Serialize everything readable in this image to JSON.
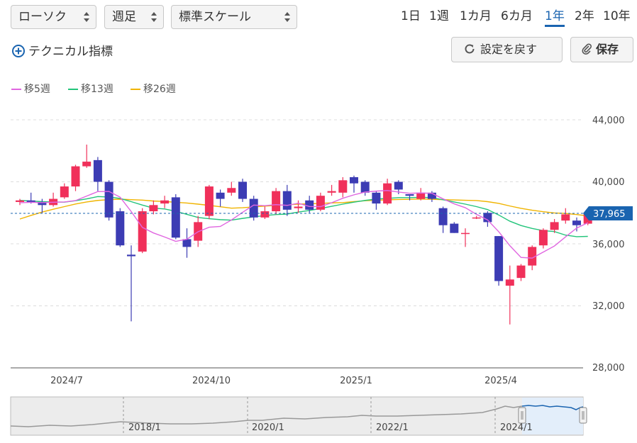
{
  "controls": {
    "chart_type": "ローソク",
    "interval": "週足",
    "scale": "標準スケール",
    "technical": "テクニカル指標",
    "reset": "設定を戻す",
    "save": "保存",
    "periods": [
      "1日",
      "1週",
      "1カ月",
      "6カ月",
      "1年",
      "2年",
      "10年"
    ],
    "active_period": "1年"
  },
  "legend": [
    {
      "label": "移5週",
      "color": "#e066e0"
    },
    {
      "label": "移13週",
      "color": "#22c47a"
    },
    {
      "label": "移26週",
      "color": "#f0b400"
    }
  ],
  "colors": {
    "up": "#f0305a",
    "down": "#3c3cb4",
    "current": "#1a64b0",
    "grid": "#dcdcdc"
  },
  "chart_data": {
    "type": "candlestick",
    "y_ticks": [
      "44,000",
      "40,000",
      "36,000",
      "32,000",
      "28,000"
    ],
    "ylim": [
      28000,
      44000
    ],
    "x_labels": [
      {
        "label": "2024/7",
        "index": 5
      },
      {
        "label": "2024/10",
        "index": 18
      },
      {
        "label": "2025/1",
        "index": 31
      },
      {
        "label": "2025/4",
        "index": 44
      }
    ],
    "current_price": 37965,
    "current_label": "37,965",
    "candles": [
      [
        38700,
        38800,
        38500,
        38900
      ],
      [
        38800,
        38700,
        38600,
        39300
      ],
      [
        38700,
        38500,
        38000,
        38900
      ],
      [
        38500,
        38900,
        38400,
        39300
      ],
      [
        39000,
        39700,
        38900,
        39900
      ],
      [
        39700,
        41000,
        39400,
        41100
      ],
      [
        41000,
        41300,
        40900,
        42400
      ],
      [
        41400,
        40000,
        39400,
        41600
      ],
      [
        40000,
        37700,
        37500,
        40100
      ],
      [
        38100,
        35900,
        35800,
        38300
      ],
      [
        35300,
        35200,
        31000,
        35900
      ],
      [
        35500,
        38100,
        35400,
        38300
      ],
      [
        38100,
        38500,
        37900,
        38800
      ],
      [
        38600,
        38800,
        38300,
        39100
      ],
      [
        39000,
        36400,
        36300,
        39200
      ],
      [
        36300,
        35800,
        35100,
        37000
      ],
      [
        36200,
        37400,
        35800,
        37800
      ],
      [
        37800,
        39700,
        37600,
        39800
      ],
      [
        39300,
        38900,
        38400,
        39500
      ],
      [
        39300,
        39600,
        39100,
        40000
      ],
      [
        40000,
        38900,
        38700,
        40200
      ],
      [
        38900,
        37700,
        37500,
        39100
      ],
      [
        37700,
        38100,
        37600,
        38400
      ],
      [
        38100,
        39400,
        37900,
        39600
      ],
      [
        39400,
        38200,
        37800,
        39800
      ],
      [
        38300,
        38400,
        38000,
        38800
      ],
      [
        38800,
        38200,
        38000,
        39100
      ],
      [
        38200,
        39100,
        38100,
        39300
      ],
      [
        39300,
        39400,
        39100,
        39800
      ],
      [
        39300,
        40100,
        39000,
        40300
      ],
      [
        40300,
        39900,
        39300,
        40400
      ],
      [
        40000,
        39300,
        39100,
        40100
      ],
      [
        39300,
        38600,
        38200,
        39400
      ],
      [
        38600,
        39900,
        38500,
        40200
      ],
      [
        40000,
        39500,
        39200,
        40100
      ],
      [
        39200,
        39100,
        38800,
        39200
      ],
      [
        38900,
        39300,
        38800,
        39600
      ],
      [
        39300,
        38900,
        38700,
        39400
      ],
      [
        38300,
        37200,
        36700,
        38400
      ],
      [
        37300,
        36700,
        36700,
        37400
      ],
      [
        36700,
        36700,
        35800,
        37000
      ],
      [
        37700,
        37700,
        37600,
        37800
      ],
      [
        38000,
        37400,
        37100,
        38100
      ],
      [
        36500,
        33600,
        33300,
        36500
      ],
      [
        33300,
        33700,
        30800,
        34600
      ],
      [
        33800,
        34600,
        33600,
        34700
      ],
      [
        34600,
        35800,
        34300,
        35900
      ],
      [
        35900,
        36900,
        35700,
        37000
      ],
      [
        36900,
        37400,
        36700,
        37600
      ],
      [
        37500,
        37900,
        37300,
        38300
      ],
      [
        37500,
        37200,
        36800,
        37700
      ],
      [
        37300,
        38000,
        37200,
        38300
      ]
    ],
    "ma5": [
      38650,
      38675,
      38660,
      38680,
      38700,
      38790,
      39080,
      39370,
      39380,
      39010,
      38080,
      37060,
      36700,
      36440,
      36160,
      36300,
      36780,
      37070,
      37120,
      37540,
      38030,
      38500,
      38460,
      38530,
      38480,
      38620,
      38410,
      38400,
      38650,
      38940,
      39160,
      39340,
      39400,
      39440,
      39340,
      39260,
      39280,
      39260,
      38900,
      38580,
      38330,
      37900,
      37540,
      36780,
      35880,
      35120,
      35080,
      35470,
      35860,
      36450,
      37020,
      37360
    ],
    "ma13": [
      38800,
      38760,
      38720,
      38700,
      38690,
      38780,
      38900,
      39050,
      39020,
      38930,
      38720,
      38500,
      38300,
      38250,
      38100,
      37900,
      37700,
      37620,
      37560,
      37530,
      37640,
      37740,
      37820,
      37890,
      37920,
      38050,
      38150,
      38280,
      38420,
      38560,
      38690,
      38800,
      38890,
      38930,
      38980,
      38980,
      39000,
      38980,
      38840,
      38700,
      38560,
      38400,
      38210,
      37860,
      37460,
      37180,
      36990,
      36850,
      36790,
      36560,
      36460,
      36480
    ],
    "ma26": [
      37600,
      37830,
      38050,
      38230,
      38400,
      38570,
      38700,
      38800,
      38850,
      38880,
      38850,
      38820,
      38760,
      38730,
      38680,
      38630,
      38560,
      38480,
      38390,
      38300,
      38330,
      38380,
      38430,
      38480,
      38520,
      38560,
      38580,
      38610,
      38640,
      38660,
      38720,
      38780,
      38810,
      38840,
      38860,
      38870,
      38890,
      38870,
      38850,
      38830,
      38810,
      38790,
      38720,
      38610,
      38440,
      38290,
      38170,
      38070,
      37990,
      37960,
      37890,
      37800
    ]
  },
  "navigator": {
    "labels": [
      "2018/1",
      "2020/1",
      "2022/1",
      "2024/1"
    ]
  }
}
